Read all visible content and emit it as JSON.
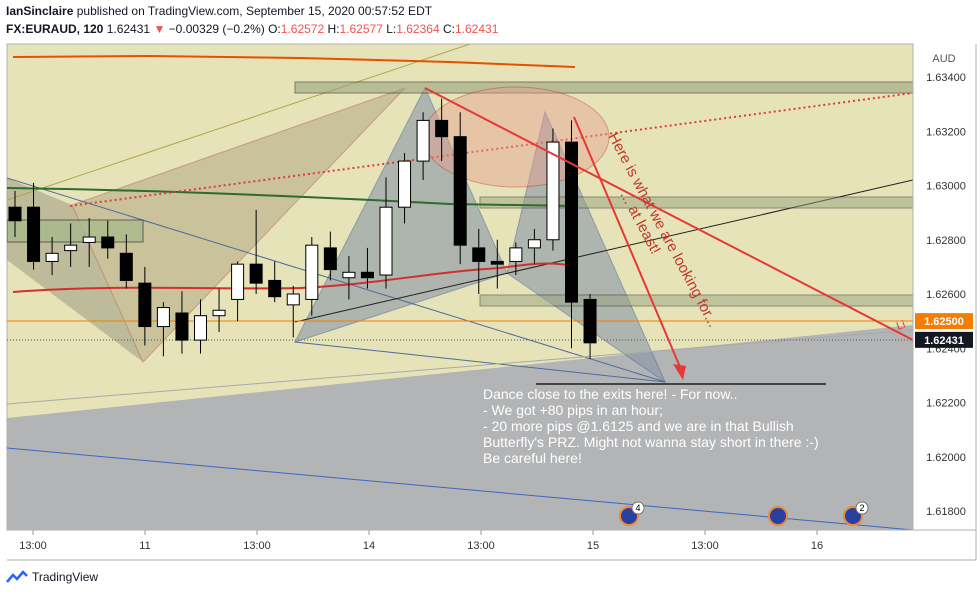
{
  "header": {
    "author": "IanSinclaire",
    "published_text": "published on TradingView.com, September 15, 2020 00:57:52 EDT",
    "symbol": "FX:EURAUD, 120",
    "last": "1.62431",
    "change_arrow": "▼",
    "change": "−0.00329 (−0.2%)",
    "open_label": "O:",
    "open": "1.62572",
    "high_label": "H:",
    "high": "1.62577",
    "low_label": "L:",
    "low": "1.62364",
    "close_label": "C:",
    "close": "1.62431"
  },
  "footer": {
    "brand": "TradingView"
  },
  "colors": {
    "up": "#ffffff",
    "down": "#000000",
    "accent": "#e53935",
    "band": "#c8c9a0"
  },
  "chart_data": {
    "type": "candlestick",
    "currency_label": "AUD",
    "ylim": [
      1.6167,
      1.635
    ],
    "y_ticks": [
      "1.63400",
      "1.63200",
      "1.63000",
      "1.62800",
      "1.62600",
      "1.62400",
      "1.62200",
      "1.62000",
      "1.61800"
    ],
    "x_ticks": [
      "13:00",
      "11",
      "13:00",
      "14",
      "13:00",
      "15",
      "13:00",
      "16"
    ],
    "price_labels": [
      {
        "value": "1.62500",
        "kind": "orange"
      },
      {
        "value": "1.62431",
        "kind": "dark"
      }
    ],
    "candles": [
      {
        "o": 1.6292,
        "h": 1.6298,
        "l": 1.6281,
        "c": 1.6287
      },
      {
        "o": 1.6292,
        "h": 1.6301,
        "l": 1.6269,
        "c": 1.6272
      },
      {
        "o": 1.6272,
        "h": 1.6281,
        "l": 1.6267,
        "c": 1.6275
      },
      {
        "o": 1.6276,
        "h": 1.6286,
        "l": 1.627,
        "c": 1.6278
      },
      {
        "o": 1.6279,
        "h": 1.6288,
        "l": 1.627,
        "c": 1.6281
      },
      {
        "o": 1.6281,
        "h": 1.6287,
        "l": 1.6273,
        "c": 1.6277
      },
      {
        "o": 1.6275,
        "h": 1.6282,
        "l": 1.6262,
        "c": 1.6265
      },
      {
        "o": 1.6264,
        "h": 1.627,
        "l": 1.6241,
        "c": 1.6248
      },
      {
        "o": 1.6248,
        "h": 1.6257,
        "l": 1.6237,
        "c": 1.6255
      },
      {
        "o": 1.6253,
        "h": 1.6261,
        "l": 1.6238,
        "c": 1.6243
      },
      {
        "o": 1.6243,
        "h": 1.6258,
        "l": 1.6238,
        "c": 1.6252
      },
      {
        "o": 1.6252,
        "h": 1.6262,
        "l": 1.6246,
        "c": 1.6254
      },
      {
        "o": 1.6258,
        "h": 1.6272,
        "l": 1.625,
        "c": 1.6271
      },
      {
        "o": 1.6271,
        "h": 1.6291,
        "l": 1.626,
        "c": 1.6264
      },
      {
        "o": 1.6265,
        "h": 1.6272,
        "l": 1.6257,
        "c": 1.6259
      },
      {
        "o": 1.6256,
        "h": 1.6263,
        "l": 1.6244,
        "c": 1.626
      },
      {
        "o": 1.6258,
        "h": 1.6281,
        "l": 1.6252,
        "c": 1.6278
      },
      {
        "o": 1.6277,
        "h": 1.6283,
        "l": 1.6265,
        "c": 1.6269
      },
      {
        "o": 1.6266,
        "h": 1.6274,
        "l": 1.6258,
        "c": 1.6268
      },
      {
        "o": 1.6268,
        "h": 1.6277,
        "l": 1.6262,
        "c": 1.6266
      },
      {
        "o": 1.6267,
        "h": 1.6303,
        "l": 1.6262,
        "c": 1.6292
      },
      {
        "o": 1.6292,
        "h": 1.6312,
        "l": 1.6286,
        "c": 1.6309
      },
      {
        "o": 1.6309,
        "h": 1.6327,
        "l": 1.6302,
        "c": 1.6324
      },
      {
        "o": 1.6324,
        "h": 1.6332,
        "l": 1.6309,
        "c": 1.6318
      },
      {
        "o": 1.6318,
        "h": 1.6327,
        "l": 1.6271,
        "c": 1.6278
      },
      {
        "o": 1.6277,
        "h": 1.6284,
        "l": 1.626,
        "c": 1.6272
      },
      {
        "o": 1.6272,
        "h": 1.628,
        "l": 1.6262,
        "c": 1.6271
      },
      {
        "o": 1.6272,
        "h": 1.6279,
        "l": 1.6267,
        "c": 1.6277
      },
      {
        "o": 1.6277,
        "h": 1.6284,
        "l": 1.6271,
        "c": 1.628
      },
      {
        "o": 1.628,
        "h": 1.6321,
        "l": 1.6276,
        "c": 1.6316
      },
      {
        "o": 1.6316,
        "h": 1.6324,
        "l": 1.624,
        "c": 1.6257
      },
      {
        "o": 1.6258,
        "h": 1.626,
        "l": 1.6236,
        "c": 1.6242
      }
    ],
    "annotation": {
      "main": [
        "Dance close to the exits here! - For now..",
        "- We got +80 pips in an hour;",
        "- 20 more pips @1.6125 and we are in that Bullish",
        "Butterfly's PRZ. Might not wanna stay short in there :-)",
        "Be careful here!"
      ],
      "rotated_1": "Here is what we are looking for...",
      "rotated_2": "... at least!"
    },
    "event_markers": [
      {
        "badge": "4"
      },
      {
        "badge": ""
      },
      {
        "badge": "2"
      }
    ]
  }
}
